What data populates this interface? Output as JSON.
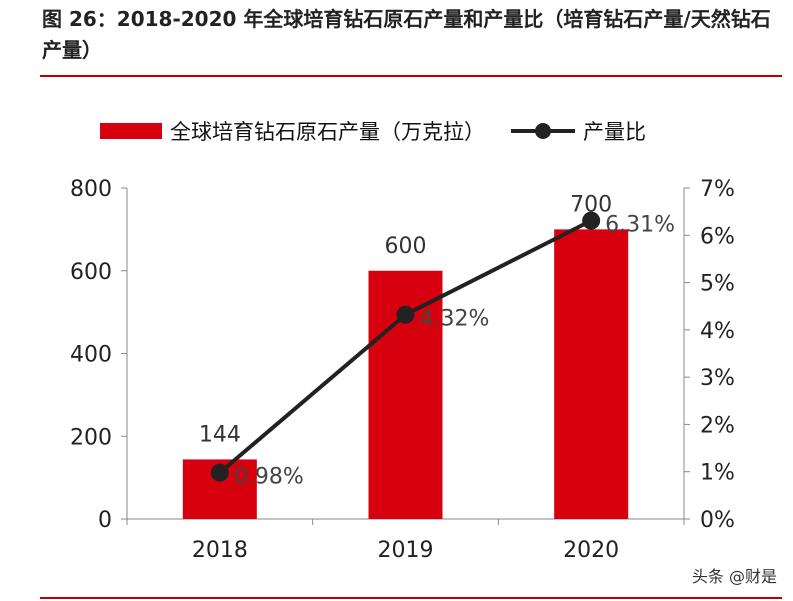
{
  "title": "图 26：2018-2020 年全球培育钻石原石产量和产量比（培育钻石产量/天然钻石产量）",
  "watermark": "头条 @财是",
  "chart_data": {
    "type": "bar+line",
    "categories": [
      "2018",
      "2019",
      "2020"
    ],
    "series": [
      {
        "name": "全球培育钻石原石产量（万克拉）",
        "type": "bar",
        "axis": "left",
        "values": [
          144,
          600,
          700
        ],
        "labels": [
          "144",
          "600",
          "700"
        ],
        "color": "#d7000f"
      },
      {
        "name": "产量比",
        "type": "line",
        "axis": "right",
        "values": [
          0.98,
          4.32,
          6.31
        ],
        "labels": [
          "0.98%",
          "4.32%",
          "6.31%"
        ],
        "color": "#222222"
      }
    ],
    "left_axis": {
      "ylim": [
        0,
        800
      ],
      "ticks": [
        "0",
        "200",
        "400",
        "600",
        "800"
      ]
    },
    "right_axis": {
      "ylim": [
        0,
        7
      ],
      "ticks": [
        "0%",
        "1%",
        "2%",
        "3%",
        "4%",
        "5%",
        "6%",
        "7%"
      ]
    },
    "legend_position": "top",
    "grid": false
  }
}
